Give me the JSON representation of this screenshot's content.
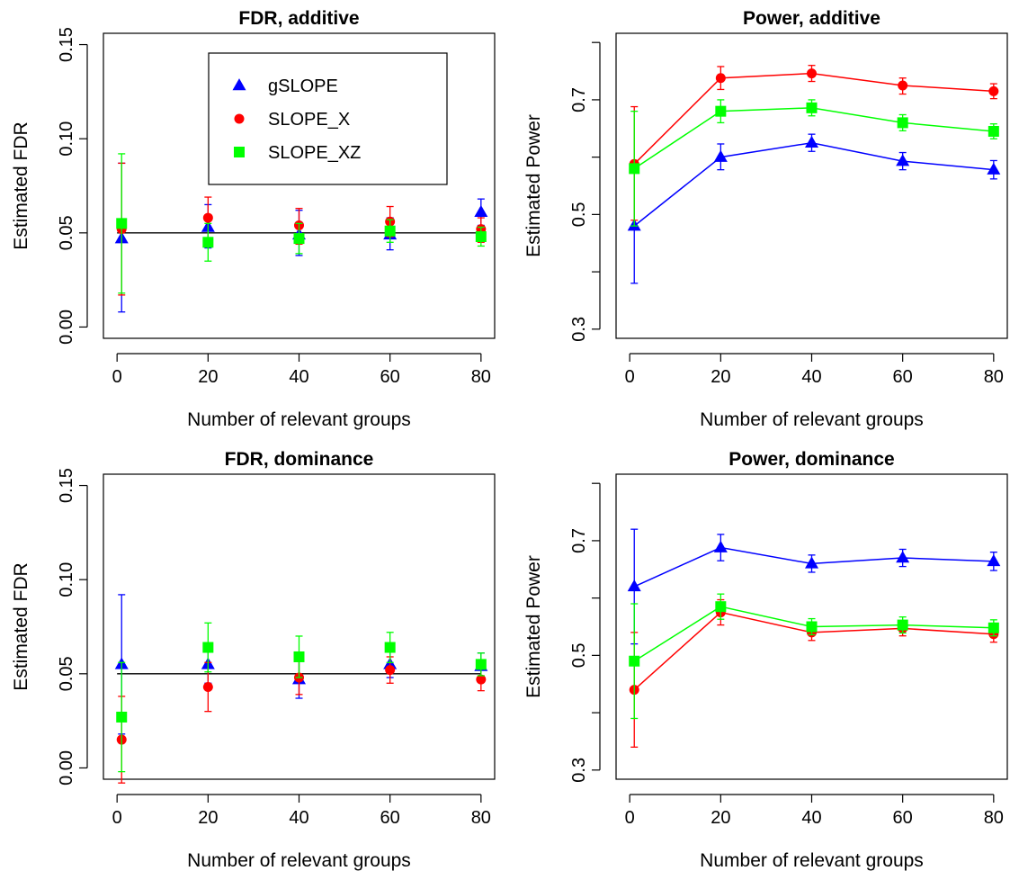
{
  "chart_data": [
    {
      "type": "line",
      "title": "FDR, additive",
      "xlabel": "Number of relevant groups",
      "ylabel": "Estimated FDR",
      "x": [
        1,
        20,
        40,
        60,
        80
      ],
      "xticks": [
        0,
        20,
        40,
        60,
        80
      ],
      "yticks": [
        0.0,
        0.05,
        0.1,
        0.15
      ],
      "ytick_labels": [
        "0.00",
        "0.05",
        "0.10",
        "0.15"
      ],
      "xlim": [
        -3,
        83
      ],
      "ylim": [
        -0.006,
        0.156
      ],
      "connect_points": false,
      "reference_line": 0.05,
      "legend": {
        "position": "top-right",
        "entries": [
          "gSLOPE",
          "SLOPE_X",
          "SLOPE_XZ"
        ]
      },
      "series": [
        {
          "name": "gSLOPE",
          "color": "#0000FF",
          "marker": "triangle",
          "values": [
            0.047,
            0.053,
            0.049,
            0.049,
            0.061
          ],
          "lower": [
            0.008,
            0.042,
            0.038,
            0.041,
            0.054
          ],
          "upper": [
            0.087,
            0.065,
            0.062,
            0.058,
            0.068
          ]
        },
        {
          "name": "SLOPE_X",
          "color": "#FF0000",
          "marker": "circle",
          "values": [
            0.052,
            0.058,
            0.054,
            0.056,
            0.052
          ],
          "lower": [
            0.017,
            0.047,
            0.044,
            0.048,
            0.045
          ],
          "upper": [
            0.087,
            0.069,
            0.063,
            0.064,
            0.058
          ]
        },
        {
          "name": "SLOPE_XZ",
          "color": "#00FF00",
          "marker": "square",
          "values": [
            0.055,
            0.045,
            0.047,
            0.051,
            0.048
          ],
          "lower": [
            0.018,
            0.035,
            0.039,
            0.045,
            0.043
          ],
          "upper": [
            0.092,
            0.055,
            0.055,
            0.057,
            0.053
          ]
        }
      ]
    },
    {
      "type": "line",
      "title": "Power, additive",
      "xlabel": "Number of relevant groups",
      "ylabel": "Estimated Power",
      "x": [
        1,
        20,
        40,
        60,
        80
      ],
      "xticks": [
        0,
        20,
        40,
        60,
        80
      ],
      "yticks": [
        0.3,
        0.4,
        0.5,
        0.6,
        0.7,
        0.8
      ],
      "ytick_labels": [
        "0.3",
        "",
        "0.5",
        "",
        "0.7",
        ""
      ],
      "xlim": [
        -3,
        83
      ],
      "ylim": [
        0.284,
        0.816
      ],
      "connect_points": true,
      "series": [
        {
          "name": "gSLOPE",
          "color": "#0000FF",
          "marker": "triangle",
          "values": [
            0.48,
            0.6,
            0.625,
            0.593,
            0.578
          ],
          "lower": [
            0.38,
            0.578,
            0.61,
            0.578,
            0.562
          ],
          "upper": [
            0.58,
            0.623,
            0.64,
            0.608,
            0.594
          ]
        },
        {
          "name": "SLOPE_X",
          "color": "#FF0000",
          "marker": "circle",
          "values": [
            0.588,
            0.738,
            0.746,
            0.725,
            0.715
          ],
          "lower": [
            0.49,
            0.718,
            0.732,
            0.71,
            0.702
          ],
          "upper": [
            0.688,
            0.758,
            0.76,
            0.738,
            0.728
          ]
        },
        {
          "name": "SLOPE_XZ",
          "color": "#00FF00",
          "marker": "square",
          "values": [
            0.58,
            0.68,
            0.686,
            0.66,
            0.645
          ],
          "lower": [
            0.48,
            0.66,
            0.672,
            0.646,
            0.632
          ],
          "upper": [
            0.68,
            0.7,
            0.7,
            0.674,
            0.658
          ]
        }
      ]
    },
    {
      "type": "line",
      "title": "FDR, dominance",
      "xlabel": "Number of relevant groups",
      "ylabel": "Estimated FDR",
      "x": [
        1,
        20,
        40,
        60,
        80
      ],
      "xticks": [
        0,
        20,
        40,
        60,
        80
      ],
      "yticks": [
        0.0,
        0.05,
        0.1,
        0.15
      ],
      "ytick_labels": [
        "0.00",
        "0.05",
        "0.10",
        "0.15"
      ],
      "xlim": [
        -3,
        83
      ],
      "ylim": [
        -0.006,
        0.156
      ],
      "connect_points": false,
      "reference_line": 0.05,
      "series": [
        {
          "name": "gSLOPE",
          "color": "#0000FF",
          "marker": "triangle",
          "values": [
            0.055,
            0.055,
            0.047,
            0.055,
            0.054
          ],
          "lower": [
            0.018,
            0.045,
            0.037,
            0.048,
            0.048
          ],
          "upper": [
            0.092,
            0.066,
            0.057,
            0.062,
            0.061
          ]
        },
        {
          "name": "SLOPE_X",
          "color": "#FF0000",
          "marker": "circle",
          "values": [
            0.015,
            0.043,
            0.048,
            0.052,
            0.047
          ],
          "lower": [
            -0.008,
            0.03,
            0.039,
            0.045,
            0.041
          ],
          "upper": [
            0.038,
            0.056,
            0.057,
            0.059,
            0.053
          ]
        },
        {
          "name": "SLOPE_XZ",
          "color": "#00FF00",
          "marker": "square",
          "values": [
            0.027,
            0.064,
            0.059,
            0.064,
            0.055
          ],
          "lower": [
            -0.002,
            0.051,
            0.048,
            0.056,
            0.049
          ],
          "upper": [
            0.056,
            0.077,
            0.07,
            0.072,
            0.061
          ]
        }
      ]
    },
    {
      "type": "line",
      "title": "Power, dominance",
      "xlabel": "Number of relevant groups",
      "ylabel": "Estimated Power",
      "x": [
        1,
        20,
        40,
        60,
        80
      ],
      "xticks": [
        0,
        20,
        40,
        60,
        80
      ],
      "yticks": [
        0.3,
        0.4,
        0.5,
        0.6,
        0.7,
        0.8
      ],
      "ytick_labels": [
        "0.3",
        "",
        "0.5",
        "",
        "0.7",
        ""
      ],
      "xlim": [
        -3,
        83
      ],
      "ylim": [
        0.284,
        0.816
      ],
      "connect_points": true,
      "series": [
        {
          "name": "gSLOPE",
          "color": "#0000FF",
          "marker": "triangle",
          "values": [
            0.62,
            0.688,
            0.66,
            0.67,
            0.664
          ],
          "lower": [
            0.52,
            0.665,
            0.645,
            0.655,
            0.648
          ],
          "upper": [
            0.72,
            0.711,
            0.675,
            0.685,
            0.68
          ]
        },
        {
          "name": "SLOPE_X",
          "color": "#FF0000",
          "marker": "circle",
          "values": [
            0.44,
            0.575,
            0.54,
            0.547,
            0.537
          ],
          "lower": [
            0.34,
            0.553,
            0.526,
            0.534,
            0.523
          ],
          "upper": [
            0.54,
            0.597,
            0.554,
            0.56,
            0.551
          ]
        },
        {
          "name": "SLOPE_XZ",
          "color": "#00FF00",
          "marker": "square",
          "values": [
            0.49,
            0.585,
            0.55,
            0.553,
            0.548
          ],
          "lower": [
            0.39,
            0.563,
            0.536,
            0.539,
            0.534
          ],
          "upper": [
            0.59,
            0.607,
            0.564,
            0.567,
            0.562
          ]
        }
      ]
    }
  ]
}
